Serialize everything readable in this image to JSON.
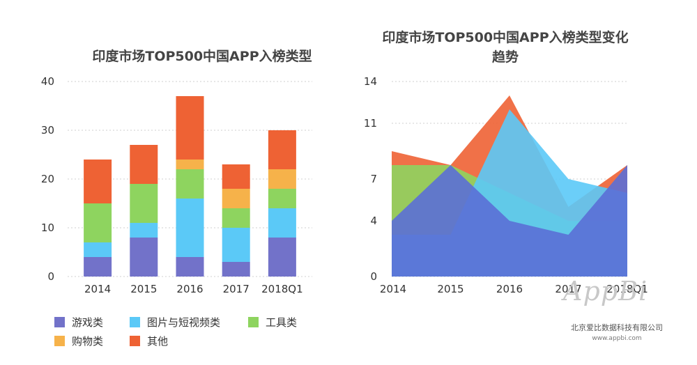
{
  "chart_data": [
    {
      "type": "bar",
      "stacked": true,
      "title": "印度市场TOP500中国APP入榜类型",
      "categories": [
        "2014",
        "2015",
        "2016",
        "2017",
        "2018Q1"
      ],
      "ylim": [
        0,
        40
      ],
      "yticks": [
        "0",
        "10",
        "20",
        "30",
        "40"
      ],
      "grid": true,
      "series": [
        {
          "name": "游戏类",
          "color": "#7272c9",
          "values": [
            4,
            8,
            4,
            3,
            8
          ]
        },
        {
          "name": "图片与短视频类",
          "color": "#5bc9f7",
          "values": [
            3,
            3,
            12,
            7,
            6
          ]
        },
        {
          "name": "工具类",
          "color": "#8ed45f",
          "values": [
            8,
            8,
            6,
            4,
            4
          ]
        },
        {
          "name": "购物类",
          "color": "#f6b24a",
          "values": [
            0,
            0,
            2,
            4,
            4
          ]
        },
        {
          "name": "其他",
          "color": "#ee6234",
          "values": [
            9,
            8,
            13,
            5,
            8
          ]
        }
      ]
    },
    {
      "type": "area",
      "title": "印度市场TOP500中国APP入榜类型变化趋势",
      "categories": [
        "2014",
        "2015",
        "2016",
        "2017",
        "2018Q1"
      ],
      "ylim": [
        0,
        14
      ],
      "yticks": [
        "0",
        "4",
        "7",
        "11",
        "14"
      ],
      "grid": true,
      "series": [
        {
          "name": "其他",
          "color": "#ee6234",
          "values": [
            9,
            8,
            13,
            5,
            8
          ]
        },
        {
          "name": "工具类",
          "color": "#8ed45f",
          "values": [
            8,
            8,
            6,
            4,
            4
          ]
        },
        {
          "name": "图片与短视频类",
          "color": "#5bc9f7",
          "values": [
            3,
            3,
            12,
            7,
            6
          ]
        },
        {
          "name": "游戏类",
          "color": "#5b6fd6",
          "values": [
            4,
            8,
            4,
            3,
            8
          ]
        }
      ]
    }
  ],
  "legend": [
    {
      "label": "游戏类",
      "color": "#7272c9"
    },
    {
      "label": "图片与短视频类",
      "color": "#5bc9f7"
    },
    {
      "label": "工具类",
      "color": "#8ed45f"
    },
    {
      "label": "购物类",
      "color": "#f6b24a"
    },
    {
      "label": "其他",
      "color": "#ee6234"
    }
  ],
  "watermark": {
    "brand": "AppBi",
    "company": "北京爱比数据科技有限公司",
    "url": "www.appbi.com"
  }
}
